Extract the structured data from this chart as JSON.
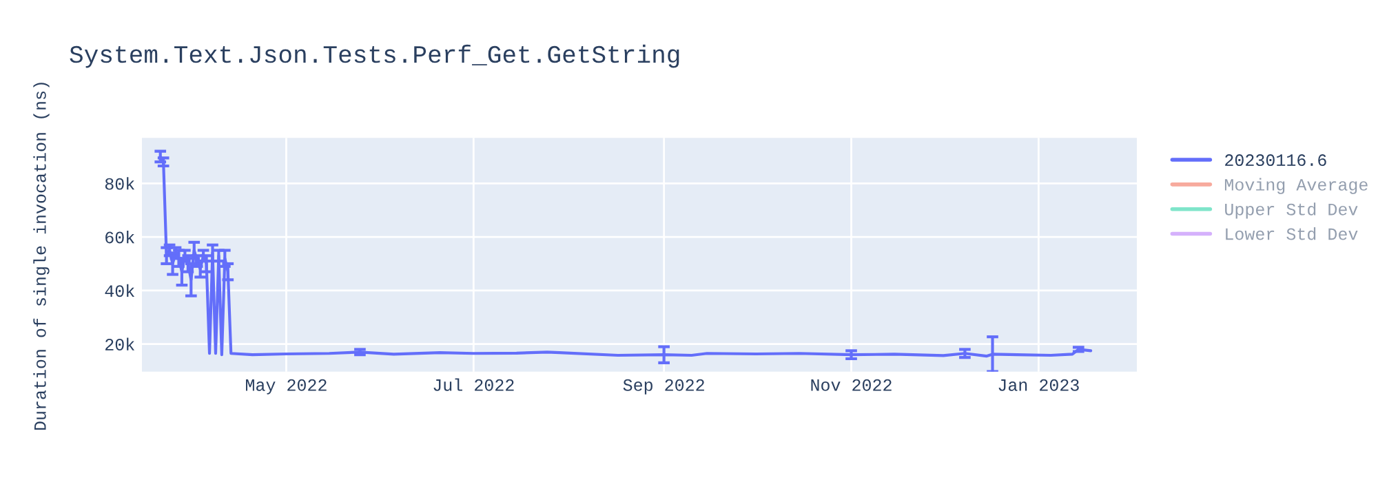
{
  "chart_data": {
    "type": "line",
    "title": "System.Text.Json.Tests.Perf_Get.GetString",
    "ylabel": "Duration of single invocation (ns)",
    "x": [
      "2022-03-21",
      "2022-03-22",
      "2022-03-23",
      "2022-03-24",
      "2022-03-25",
      "2022-03-26",
      "2022-03-27",
      "2022-03-28",
      "2022-03-29",
      "2022-03-30",
      "2022-03-31",
      "2022-04-01",
      "2022-04-02",
      "2022-04-03",
      "2022-04-04",
      "2022-04-05",
      "2022-04-06",
      "2022-04-07",
      "2022-04-08",
      "2022-04-09",
      "2022-04-10",
      "2022-04-11",
      "2022-04-12",
      "2022-04-13",
      "2022-04-20",
      "2022-05-01",
      "2022-05-15",
      "2022-05-25",
      "2022-06-05",
      "2022-06-20",
      "2022-07-01",
      "2022-07-15",
      "2022-07-25",
      "2022-07-29",
      "2022-08-17",
      "2022-09-01",
      "2022-09-10",
      "2022-09-15",
      "2022-10-01",
      "2022-10-15",
      "2022-11-01",
      "2022-11-15",
      "2022-12-01",
      "2022-12-08",
      "2022-12-15",
      "2022-12-17",
      "2022-12-25",
      "2023-01-05",
      "2023-01-12",
      "2023-01-14",
      "2023-01-18"
    ],
    "series": [
      {
        "name": "20230116.6",
        "color": "#636efa",
        "values": [
          90000,
          88000,
          53000,
          55000,
          50000,
          54000,
          52000,
          47000,
          53000,
          50000,
          44000,
          55000,
          51000,
          48000,
          53000,
          50000,
          16500,
          54000,
          16500,
          53000,
          16000,
          52000,
          47000,
          16500,
          16000,
          16300,
          16500,
          17000,
          16200,
          16800,
          16500,
          16600,
          17000,
          16800,
          15800,
          16000,
          15800,
          16500,
          16300,
          16500,
          16000,
          16200,
          15700,
          16500,
          15500,
          16200,
          16000,
          15800,
          16200,
          18000,
          17500
        ],
        "errors": [
          2000,
          1500,
          3000,
          2000,
          4000,
          2000,
          3000,
          5000,
          2000,
          3000,
          6000,
          3000,
          2000,
          3000,
          2000,
          3000,
          null,
          3000,
          null,
          2000,
          null,
          3000,
          3000,
          null,
          null,
          null,
          null,
          1000,
          null,
          null,
          null,
          null,
          null,
          null,
          null,
          3000,
          null,
          null,
          null,
          null,
          1500,
          null,
          null,
          1500,
          null,
          6500,
          null,
          null,
          null,
          800,
          null
        ]
      },
      {
        "name": "Moving Average",
        "color": "#ef553b",
        "values": [
          null,
          null,
          null,
          null,
          null,
          null,
          null,
          null,
          null,
          null,
          null,
          null,
          null,
          null,
          null,
          null,
          null,
          null,
          null,
          null,
          null,
          null,
          null,
          null,
          null,
          null,
          null,
          null,
          null,
          null,
          null,
          null,
          null,
          null,
          null,
          null,
          null,
          null,
          null,
          null,
          null,
          null,
          null,
          null,
          null,
          null,
          null,
          null,
          null,
          null,
          null
        ]
      },
      {
        "name": "Upper Std Dev",
        "color": "#00cc96",
        "values": [
          null,
          null,
          null,
          null,
          null,
          null,
          null,
          null,
          null,
          null,
          null,
          null,
          null,
          null,
          null,
          null,
          null,
          null,
          null,
          null,
          null,
          null,
          null,
          null,
          null,
          null,
          null,
          null,
          null,
          null,
          null,
          null,
          null,
          null,
          null,
          null,
          null,
          null,
          null,
          null,
          null,
          null,
          null,
          null,
          null,
          null,
          null,
          null,
          null,
          null,
          null
        ]
      },
      {
        "name": "Lower Std Dev",
        "color": "#ab63fa",
        "values": [
          null,
          null,
          null,
          null,
          null,
          null,
          null,
          null,
          null,
          null,
          null,
          null,
          null,
          null,
          null,
          null,
          null,
          null,
          null,
          null,
          null,
          null,
          null,
          null,
          null,
          null,
          null,
          null,
          null,
          null,
          null,
          null,
          null,
          null,
          null,
          null,
          null,
          null,
          null,
          null,
          null,
          null,
          null,
          null,
          null,
          null,
          null,
          null,
          null,
          null,
          null
        ]
      }
    ],
    "xlim": [
      "2022-03-15",
      "2023-02-02"
    ],
    "xticks": [
      {
        "value": "2022-05-01",
        "label": "May 2022"
      },
      {
        "value": "2022-07-01",
        "label": "Jul 2022"
      },
      {
        "value": "2022-09-01",
        "label": "Sep 2022"
      },
      {
        "value": "2022-11-01",
        "label": "Nov 2022"
      },
      {
        "value": "2023-01-01",
        "label": "Jan 2023"
      }
    ],
    "ylim": [
      9700,
      97000
    ],
    "yticks": [
      {
        "value": 20000,
        "label": "20k"
      },
      {
        "value": 40000,
        "label": "40k"
      },
      {
        "value": 60000,
        "label": "60k"
      },
      {
        "value": 80000,
        "label": "80k"
      }
    ],
    "grid": true,
    "legend": "top right"
  }
}
